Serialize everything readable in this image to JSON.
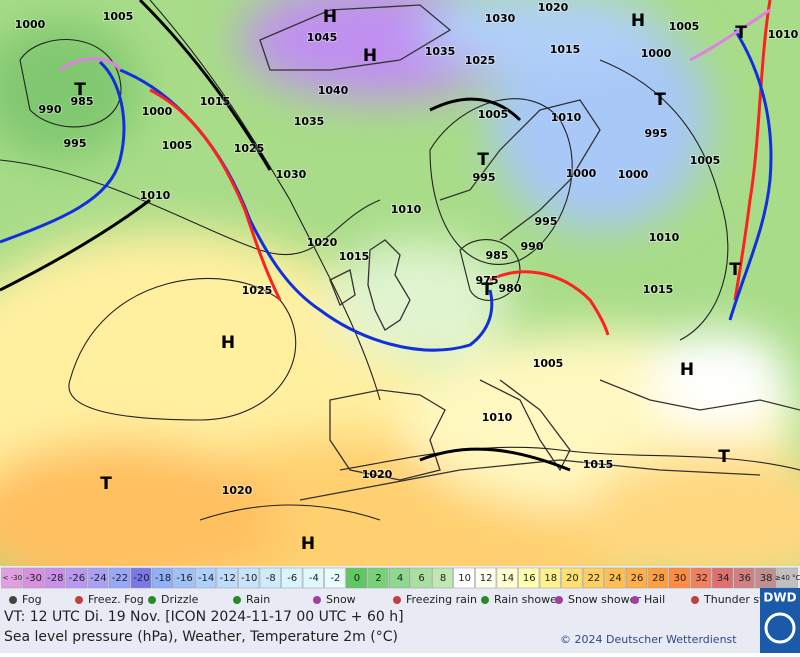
{
  "map": {
    "pressure_labels": [
      1000,
      1005,
      990,
      985,
      1000,
      995,
      1005,
      1010,
      1015,
      1025,
      1030,
      1035,
      1040,
      1045,
      1035,
      1025,
      1030,
      1020,
      1015,
      1005,
      1010,
      995,
      1010,
      1000,
      1000,
      995,
      990,
      985,
      975,
      980,
      1020,
      1015,
      1025,
      1010,
      1015,
      1005,
      1010,
      1015,
      1020,
      1020,
      1005,
      1000,
      995,
      1005,
      1010
    ],
    "systems": [
      "H",
      "H",
      "H",
      "T",
      "T",
      "T",
      "T",
      "T",
      "H",
      "H",
      "T",
      "H",
      "T",
      "T"
    ]
  },
  "legend": {
    "temperature_labels": [
      "< -30",
      "-30",
      "-28",
      "-26",
      "-24",
      "-22",
      "-20",
      "-18",
      "-16",
      "-14",
      "-12",
      "-10",
      "-8",
      "-6",
      "-4",
      "-2",
      "0",
      "2",
      "4",
      "6",
      "8",
      "10",
      "12",
      "14",
      "16",
      "18",
      "20",
      "22",
      "24",
      "26",
      "28",
      "30",
      "32",
      "34",
      "36",
      "38",
      "≥40 °C"
    ],
    "temperature_colors": [
      "#e0a0e0",
      "#d890e0",
      "#c890e8",
      "#b898f0",
      "#a8a0f0",
      "#98a8f8",
      "#7878e8",
      "#90b0f8",
      "#a0c0f8",
      "#b0d0fc",
      "#c0dcfc",
      "#c8e4fc",
      "#d0ecfc",
      "#d8f4fc",
      "#e0f8fc",
      "#e8fcfc",
      "#60c860",
      "#78d078",
      "#90d890",
      "#a8e0a0",
      "#c0e8b0",
      "#ffffff",
      "#fffff0",
      "#ffffd0",
      "#ffffb0",
      "#fff090",
      "#ffe070",
      "#ffd060",
      "#ffc050",
      "#ffb048",
      "#ffa040",
      "#ff8c40",
      "#f08060",
      "#e07070",
      "#d08080",
      "#c09090",
      "#c0c0c0"
    ],
    "weather": [
      "Fog",
      "Freez. Fog",
      "Drizzle",
      "Rain",
      "Snow",
      "Freezing rain",
      "Rain shower",
      "Snow shower",
      "Hail",
      "Thunder storm"
    ]
  },
  "footer": {
    "valid_time": "VT: 12 UTC Di.  19 Nov. [ICON 2024-11-17  00 UTC + 60 h]",
    "description": "Sea level pressure (hPa), Weather, Temperature 2m (°C)",
    "copyright": "© 2024 Deutscher Wetterdienst",
    "logo": "DWD"
  }
}
